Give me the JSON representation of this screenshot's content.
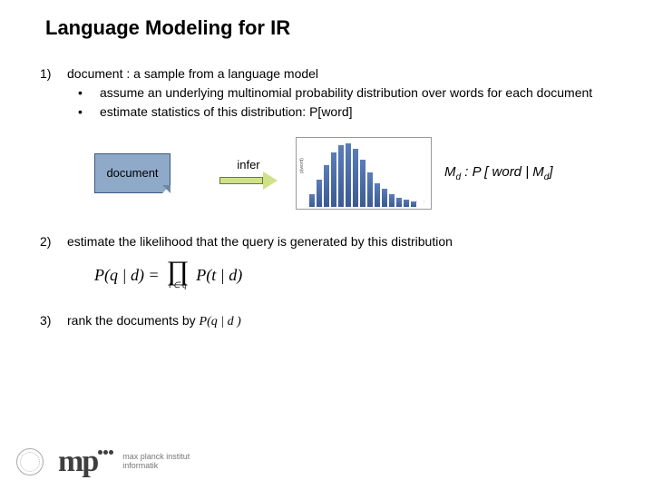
{
  "title": "Language Modeling for IR",
  "items": [
    {
      "num": "1)",
      "text": "document : a sample from a language model",
      "subs": [
        "assume an underlying multinomial probability distribution over words for each document",
        "estimate statistics of this distribution: P[word]"
      ]
    },
    {
      "num": "2)",
      "text": "estimate the likelihood that the query is generated by this distribution"
    },
    {
      "num": "3)",
      "text_html": "rank the documents by <span class='inline-italic'>P(q | d )</span>"
    }
  ],
  "diagram": {
    "doc_label": "document",
    "arrow_label": "infer",
    "model_label_prefix": "M",
    "model_label_sub": "d",
    "model_label_rest": " : P [ word | M",
    "model_label_rest2": "]"
  },
  "chart": {
    "bars": [
      14,
      30,
      46,
      60,
      68,
      70,
      64,
      52,
      38,
      26,
      20,
      14,
      10,
      8,
      6
    ],
    "bar_color_top": "#5b7db8",
    "bar_color_bottom": "#3a5a92",
    "border_color": "#999999",
    "ylabel": "p(word)"
  },
  "formula": {
    "lhs": "P(q | d) = ",
    "prod_sub": "t ∈ q",
    "rhs": "P(t | d)"
  },
  "footer": {
    "mpi_text1": "max planck institut",
    "mpi_text2": "informatik"
  },
  "colors": {
    "doc_fill": "#8fa9c9",
    "doc_border": "#3b5a7a",
    "arrow_fill": "#cfe28a",
    "arrow_border": "#6a7d2e"
  }
}
